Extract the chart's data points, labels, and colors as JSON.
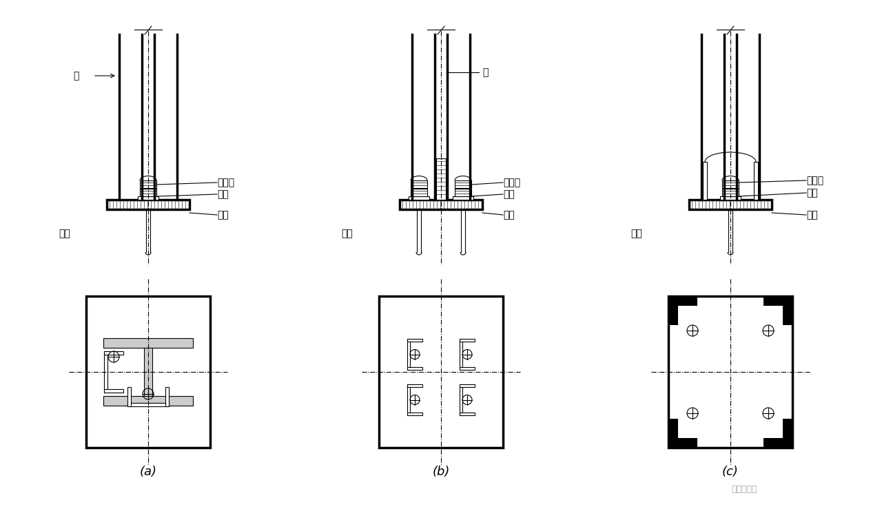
{
  "bg_color": "#ffffff",
  "line_color": "#000000",
  "title_a": "(a)",
  "title_b": "(b)",
  "title_c": "(c)",
  "labels_a": {
    "zhu": "柱",
    "shuang_luomu": "双螺母",
    "dian_ban": "垫板",
    "mao_zhuang": "锚栓",
    "di_ban": "底板"
  },
  "labels_b": {
    "zhu": "柱",
    "shuang_luomu": "双螺母",
    "dian_ban": "垫板",
    "mao_zhuang": "锚栓",
    "di_ban": "底板"
  },
  "labels_c": {
    "shuang_luomu": "双螺母",
    "dian_ban": "垫板",
    "mao_zhuang": "锚栓",
    "di_ban": "底板"
  },
  "watermark": "钢结构设计"
}
